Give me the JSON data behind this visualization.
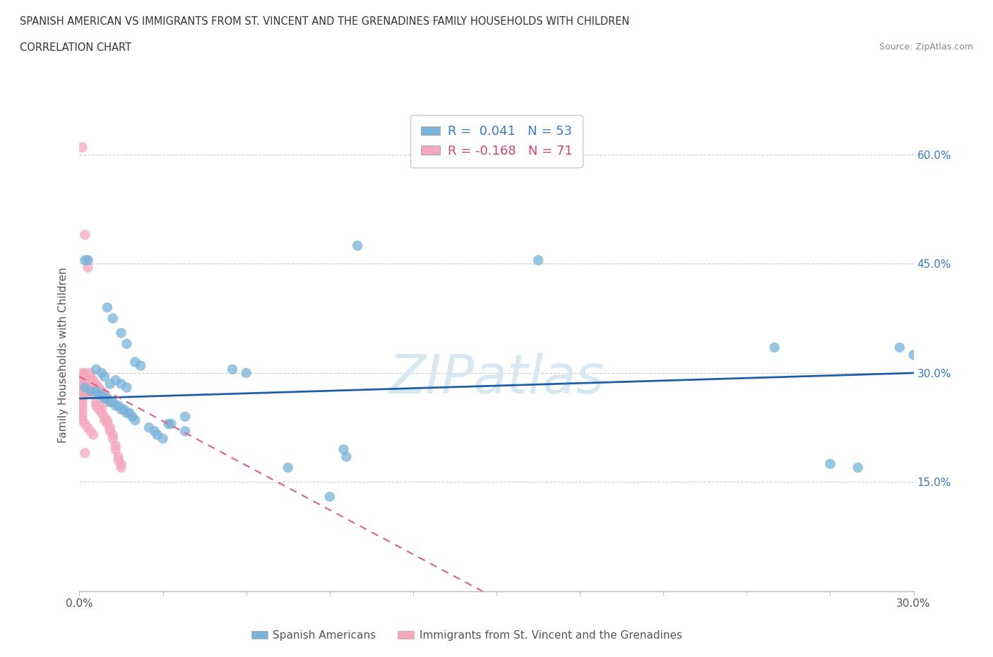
{
  "title_line1": "SPANISH AMERICAN VS IMMIGRANTS FROM ST. VINCENT AND THE GRENADINES FAMILY HOUSEHOLDS WITH CHILDREN",
  "title_line2": "CORRELATION CHART",
  "source_text": "Source: ZipAtlas.com",
  "ylabel": "Family Households with Children",
  "xmin": 0.0,
  "xmax": 0.3,
  "ymin": 0.0,
  "ymax": 0.65,
  "yticks": [
    0.0,
    0.15,
    0.3,
    0.45,
    0.6
  ],
  "xticks": [
    0.0,
    0.03,
    0.06,
    0.09,
    0.12,
    0.15,
    0.18,
    0.21,
    0.24,
    0.27,
    0.3
  ],
  "grid_color": "#cccccc",
  "blue_color": "#7ab3d9",
  "pink_color": "#f4a8be",
  "blue_line_color": "#1f5faa",
  "pink_line_color": "#e06080",
  "blue_line_x0": 0.0,
  "blue_line_x1": 0.3,
  "blue_line_y0": 0.265,
  "blue_line_y1": 0.3,
  "pink_line_x0": 0.0,
  "pink_line_x1": 0.145,
  "pink_line_y0": 0.295,
  "pink_line_y1": 0.0,
  "blue_scatter": [
    [
      0.002,
      0.455
    ],
    [
      0.003,
      0.455
    ],
    [
      0.01,
      0.39
    ],
    [
      0.012,
      0.375
    ],
    [
      0.015,
      0.355
    ],
    [
      0.017,
      0.34
    ],
    [
      0.02,
      0.315
    ],
    [
      0.022,
      0.31
    ],
    [
      0.006,
      0.305
    ],
    [
      0.008,
      0.3
    ],
    [
      0.009,
      0.295
    ],
    [
      0.011,
      0.285
    ],
    [
      0.013,
      0.29
    ],
    [
      0.015,
      0.285
    ],
    [
      0.017,
      0.28
    ],
    [
      0.002,
      0.28
    ],
    [
      0.004,
      0.275
    ],
    [
      0.006,
      0.275
    ],
    [
      0.007,
      0.27
    ],
    [
      0.008,
      0.27
    ],
    [
      0.009,
      0.265
    ],
    [
      0.01,
      0.265
    ],
    [
      0.011,
      0.26
    ],
    [
      0.012,
      0.26
    ],
    [
      0.013,
      0.255
    ],
    [
      0.014,
      0.255
    ],
    [
      0.015,
      0.25
    ],
    [
      0.016,
      0.25
    ],
    [
      0.017,
      0.245
    ],
    [
      0.018,
      0.245
    ],
    [
      0.019,
      0.24
    ],
    [
      0.02,
      0.235
    ],
    [
      0.025,
      0.225
    ],
    [
      0.027,
      0.22
    ],
    [
      0.028,
      0.215
    ],
    [
      0.03,
      0.21
    ],
    [
      0.032,
      0.23
    ],
    [
      0.033,
      0.23
    ],
    [
      0.038,
      0.24
    ],
    [
      0.038,
      0.22
    ],
    [
      0.055,
      0.305
    ],
    [
      0.06,
      0.3
    ],
    [
      0.075,
      0.17
    ],
    [
      0.09,
      0.13
    ],
    [
      0.095,
      0.195
    ],
    [
      0.096,
      0.185
    ],
    [
      0.1,
      0.475
    ],
    [
      0.165,
      0.455
    ],
    [
      0.25,
      0.335
    ],
    [
      0.27,
      0.175
    ],
    [
      0.28,
      0.17
    ],
    [
      0.295,
      0.335
    ],
    [
      0.3,
      0.325
    ]
  ],
  "pink_scatter": [
    [
      0.001,
      0.61
    ],
    [
      0.002,
      0.49
    ],
    [
      0.003,
      0.455
    ],
    [
      0.003,
      0.445
    ],
    [
      0.004,
      0.3
    ],
    [
      0.004,
      0.295
    ],
    [
      0.005,
      0.29
    ],
    [
      0.005,
      0.285
    ],
    [
      0.006,
      0.285
    ],
    [
      0.006,
      0.28
    ],
    [
      0.007,
      0.28
    ],
    [
      0.007,
      0.275
    ],
    [
      0.008,
      0.275
    ],
    [
      0.008,
      0.27
    ],
    [
      0.009,
      0.27
    ],
    [
      0.009,
      0.265
    ],
    [
      0.01,
      0.265
    ],
    [
      0.01,
      0.26
    ],
    [
      0.001,
      0.3
    ],
    [
      0.001,
      0.295
    ],
    [
      0.001,
      0.29
    ],
    [
      0.001,
      0.285
    ],
    [
      0.001,
      0.28
    ],
    [
      0.001,
      0.275
    ],
    [
      0.001,
      0.27
    ],
    [
      0.001,
      0.265
    ],
    [
      0.001,
      0.26
    ],
    [
      0.001,
      0.255
    ],
    [
      0.001,
      0.25
    ],
    [
      0.001,
      0.245
    ],
    [
      0.001,
      0.24
    ],
    [
      0.001,
      0.235
    ],
    [
      0.002,
      0.3
    ],
    [
      0.002,
      0.295
    ],
    [
      0.002,
      0.29
    ],
    [
      0.002,
      0.285
    ],
    [
      0.002,
      0.28
    ],
    [
      0.002,
      0.275
    ],
    [
      0.002,
      0.27
    ],
    [
      0.003,
      0.285
    ],
    [
      0.003,
      0.28
    ],
    [
      0.003,
      0.275
    ],
    [
      0.004,
      0.28
    ],
    [
      0.004,
      0.275
    ],
    [
      0.005,
      0.275
    ],
    [
      0.005,
      0.27
    ],
    [
      0.006,
      0.26
    ],
    [
      0.006,
      0.255
    ],
    [
      0.007,
      0.255
    ],
    [
      0.007,
      0.25
    ],
    [
      0.008,
      0.25
    ],
    [
      0.008,
      0.245
    ],
    [
      0.009,
      0.24
    ],
    [
      0.009,
      0.235
    ],
    [
      0.01,
      0.235
    ],
    [
      0.01,
      0.23
    ],
    [
      0.011,
      0.225
    ],
    [
      0.011,
      0.22
    ],
    [
      0.012,
      0.215
    ],
    [
      0.012,
      0.21
    ],
    [
      0.013,
      0.2
    ],
    [
      0.013,
      0.195
    ],
    [
      0.014,
      0.185
    ],
    [
      0.014,
      0.18
    ],
    [
      0.015,
      0.175
    ],
    [
      0.015,
      0.17
    ],
    [
      0.002,
      0.23
    ],
    [
      0.003,
      0.225
    ],
    [
      0.004,
      0.22
    ],
    [
      0.005,
      0.215
    ],
    [
      0.002,
      0.19
    ]
  ]
}
